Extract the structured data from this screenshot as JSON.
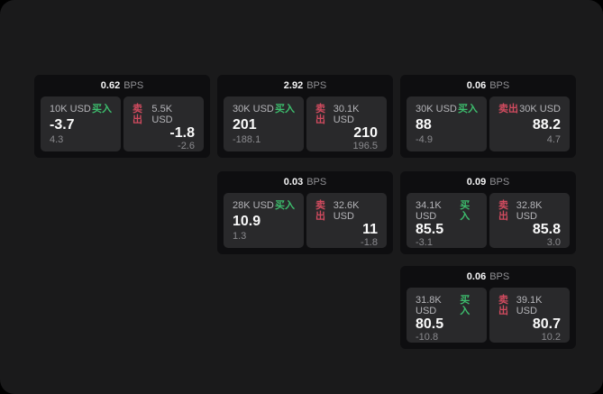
{
  "page": {
    "unit_label": "BPS",
    "buy_label": "买入",
    "sell_label": "卖出"
  },
  "colors": {
    "panel": "#1a1a1b",
    "card": "#0e0e10",
    "tile": "#29292b",
    "buy": "#3dbd6d",
    "sell": "#d14b5f"
  },
  "cards": [
    {
      "bps": "0.62",
      "buy": {
        "amount": "10K USD",
        "price": "-3.7",
        "delta": "4.3"
      },
      "sell": {
        "amount": "5.5K USD",
        "price": "-1.8",
        "delta": "-2.6"
      }
    },
    {
      "bps": "2.92",
      "buy": {
        "amount": "30K USD",
        "price": "201",
        "delta": "-188.1"
      },
      "sell": {
        "amount": "30.1K USD",
        "price": "210",
        "delta": "196.5"
      }
    },
    {
      "bps": "0.06",
      "buy": {
        "amount": "30K USD",
        "price": "88",
        "delta": "-4.9"
      },
      "sell": {
        "amount": "30K USD",
        "price": "88.2",
        "delta": "4.7"
      }
    },
    {
      "bps": "0.03",
      "buy": {
        "amount": "28K USD",
        "price": "10.9",
        "delta": "1.3"
      },
      "sell": {
        "amount": "32.6K USD",
        "price": "11",
        "delta": "-1.8"
      }
    },
    {
      "bps": "0.09",
      "buy": {
        "amount": "34.1K USD",
        "price": "85.5",
        "delta": "-3.1"
      },
      "sell": {
        "amount": "32.8K USD",
        "price": "85.8",
        "delta": "3.0"
      }
    },
    {
      "bps": "0.06",
      "buy": {
        "amount": "31.8K USD",
        "price": "80.5",
        "delta": "-10.8"
      },
      "sell": {
        "amount": "39.1K USD",
        "price": "80.7",
        "delta": "10.2"
      }
    }
  ]
}
